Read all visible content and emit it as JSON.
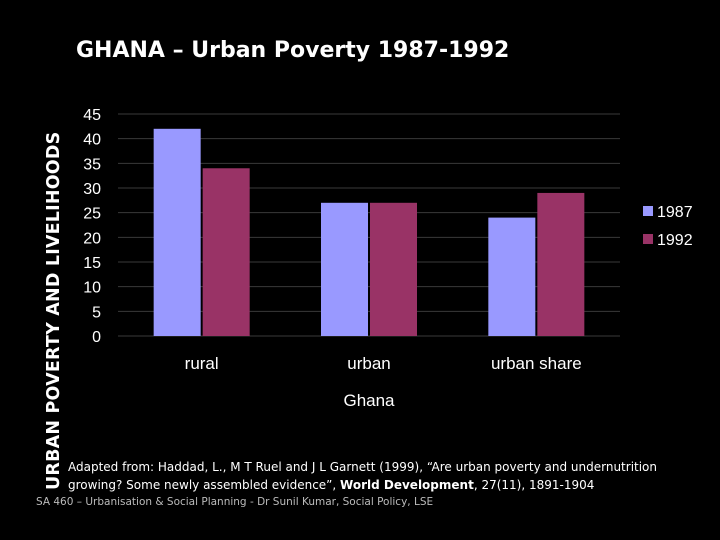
{
  "side_title": "URBAN POVERTY AND LIVELIHOODS",
  "slide_title": "GHANA – Urban Poverty 1987-1992",
  "chart_data": {
    "type": "bar",
    "title": "GHANA – Urban Poverty 1987-1992",
    "xlabel": "Ghana",
    "ylabel": "",
    "categories": [
      "rural",
      "urban",
      "urban share"
    ],
    "series": [
      {
        "name": "1987",
        "values": [
          42,
          27,
          24
        ],
        "color": "#9999ff"
      },
      {
        "name": "1992",
        "values": [
          34,
          27,
          29
        ],
        "color": "#993366"
      }
    ],
    "ylim": [
      0,
      45
    ],
    "yticks": [
      0,
      5,
      10,
      15,
      20,
      25,
      30,
      35,
      40,
      45
    ],
    "grid": true,
    "legend": "right"
  },
  "source": {
    "prefix": "Adapted from: Haddad, L., M T Ruel and J L Garnett (1999), “Are urban poverty and undernutrition growing? Some newly assembled evidence”, ",
    "journal": "World Development",
    "suffix": ", 27(11), 1891-1904"
  },
  "footer": "SA 460 – Urbanisation & Social Planning - Dr Sunil Kumar, Social Policy, LSE"
}
